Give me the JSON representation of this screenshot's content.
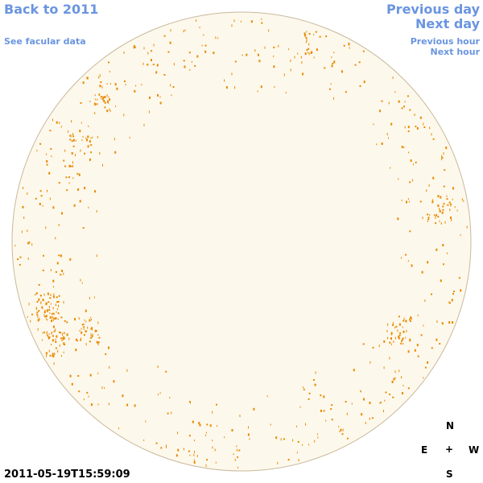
{
  "links": {
    "back": "Back to 2011",
    "previous_day": "Previous day",
    "next_day": "Next day",
    "facular": "See facular data",
    "previous_hour": "Previous hour",
    "next_hour": "Next hour"
  },
  "compass": {
    "north": "N",
    "east": "E",
    "center": "+",
    "west": "W",
    "south": "S"
  },
  "timestamp": "2011-05-19T15:59:09"
}
